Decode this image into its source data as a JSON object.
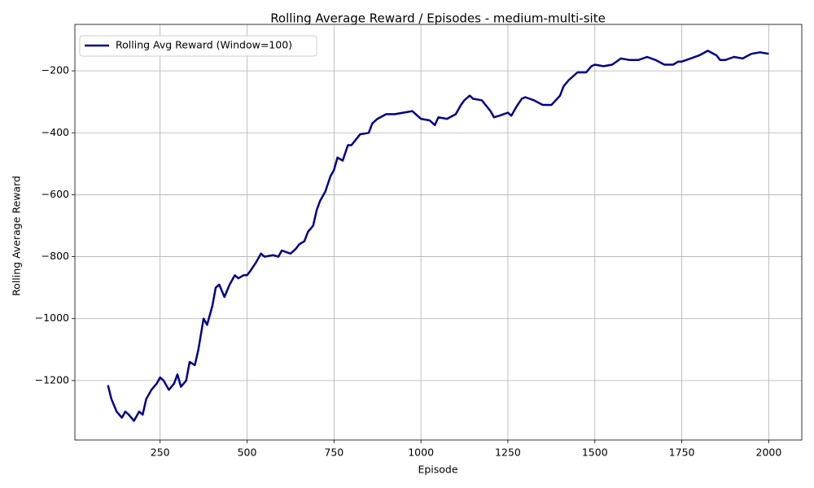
{
  "chart_data": {
    "type": "line",
    "title": "Rolling Average Reward / Episodes - medium-multi-site",
    "xlabel": "Episode",
    "ylabel": "Rolling Average Reward",
    "x": [
      100,
      110,
      125,
      140,
      150,
      160,
      175,
      190,
      200,
      210,
      225,
      240,
      250,
      260,
      275,
      290,
      300,
      310,
      325,
      335,
      350,
      360,
      375,
      385,
      400,
      410,
      420,
      435,
      450,
      465,
      475,
      490,
      500,
      510,
      525,
      540,
      550,
      575,
      590,
      600,
      625,
      640,
      650,
      665,
      675,
      690,
      700,
      710,
      725,
      740,
      750,
      760,
      775,
      790,
      800,
      825,
      850,
      860,
      875,
      900,
      925,
      950,
      975,
      1000,
      1025,
      1040,
      1050,
      1075,
      1100,
      1115,
      1125,
      1140,
      1150,
      1175,
      1200,
      1210,
      1225,
      1250,
      1260,
      1275,
      1290,
      1300,
      1325,
      1350,
      1375,
      1400,
      1410,
      1425,
      1450,
      1475,
      1490,
      1500,
      1525,
      1550,
      1575,
      1600,
      1625,
      1650,
      1675,
      1700,
      1725,
      1740,
      1750,
      1775,
      1800,
      1825,
      1850,
      1860,
      1875,
      1900,
      1925,
      1950,
      1975,
      2000
    ],
    "series": [
      {
        "name": "Rolling Avg Reward (Window=100)",
        "color": "#00008b",
        "values": [
          -1215,
          -1260,
          -1300,
          -1320,
          -1300,
          -1310,
          -1330,
          -1300,
          -1310,
          -1260,
          -1230,
          -1210,
          -1190,
          -1200,
          -1230,
          -1210,
          -1180,
          -1220,
          -1200,
          -1140,
          -1150,
          -1100,
          -1000,
          -1020,
          -960,
          -900,
          -890,
          -930,
          -890,
          -860,
          -870,
          -860,
          -860,
          -845,
          -820,
          -790,
          -800,
          -795,
          -800,
          -780,
          -790,
          -775,
          -760,
          -750,
          -720,
          -700,
          -650,
          -620,
          -590,
          -540,
          -520,
          -480,
          -490,
          -440,
          -440,
          -405,
          -400,
          -370,
          -355,
          -340,
          -340,
          -335,
          -330,
          -355,
          -360,
          -375,
          -350,
          -355,
          -340,
          -310,
          -295,
          -280,
          -290,
          -295,
          -330,
          -350,
          -345,
          -335,
          -345,
          -315,
          -290,
          -285,
          -295,
          -310,
          -310,
          -280,
          -250,
          -230,
          -205,
          -205,
          -185,
          -180,
          -185,
          -180,
          -160,
          -165,
          -165,
          -155,
          -165,
          -180,
          -180,
          -170,
          -170,
          -160,
          -150,
          -135,
          -150,
          -165,
          -165,
          -155,
          -160,
          -145,
          -140,
          -145
        ]
      }
    ],
    "xlim": [
      5,
      2095
    ],
    "ylim": [
      -1392,
      -50
    ],
    "xticks": [
      250,
      500,
      750,
      1000,
      1250,
      1500,
      1750,
      2000
    ],
    "yticks": [
      {
        "value": -1200,
        "label": "−1200"
      },
      {
        "value": -1000,
        "label": "−1000"
      },
      {
        "value": -800,
        "label": "−800"
      },
      {
        "value": -600,
        "label": "−600"
      },
      {
        "value": -400,
        "label": "−400"
      },
      {
        "value": -200,
        "label": "−200"
      }
    ],
    "grid": true,
    "legend": "upper left"
  }
}
